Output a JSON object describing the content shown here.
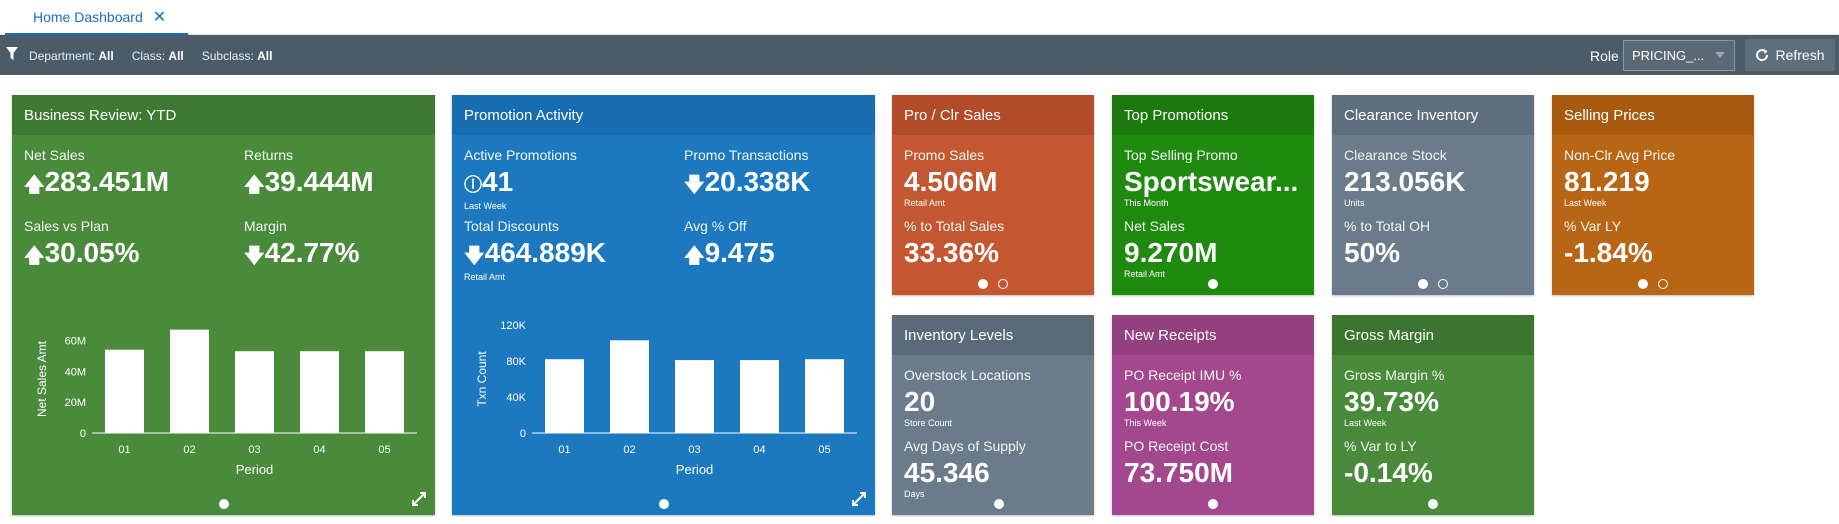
{
  "tabs": [
    {
      "label": "Home Dashboard"
    }
  ],
  "filters": {
    "department_label": "Department:",
    "department_value": "All",
    "class_label": "Class:",
    "class_value": "All",
    "subclass_label": "Subclass:",
    "subclass_value": "All"
  },
  "role": {
    "label": "Role",
    "value": "PRICING_..."
  },
  "refresh_label": "Refresh",
  "colors": {
    "green": "#4a8a3b",
    "blue": "#1c79c0",
    "orange": "#c25732",
    "brightgreen": "#1f8a0f",
    "slate": "#6b7b8a",
    "amber": "#b86515",
    "purple": "#a3488f",
    "darkgreen": "#3f7d37"
  },
  "tiles": {
    "business": {
      "title": "Business Review: YTD",
      "m1": {
        "label": "Net Sales",
        "value": "283.451M"
      },
      "m2": {
        "label": "Returns",
        "value": "39.444M"
      },
      "m3": {
        "label": "Sales vs Plan",
        "value": "30.05%"
      },
      "m4": {
        "label": "Margin",
        "value": "42.77%"
      }
    },
    "promotion": {
      "title": "Promotion Activity",
      "m1": {
        "label": "Active Promotions",
        "value": "41",
        "sub": "Last Week"
      },
      "m2": {
        "label": "Promo Transactions",
        "value": "20.338K"
      },
      "m3": {
        "label": "Total Discounts",
        "value": "464.889K",
        "sub": "Retail Amt"
      },
      "m4": {
        "label": "Avg % Off",
        "value": "9.475"
      }
    },
    "proclr": {
      "title": "Pro / Clr Sales",
      "m1": {
        "label": "Promo Sales",
        "value": "4.506M",
        "sub": "Retail Amt"
      },
      "m2": {
        "label": "% to Total Sales",
        "value": "33.36%"
      }
    },
    "toppromo": {
      "title": "Top Promotions",
      "m1": {
        "label": "Top Selling Promo",
        "value": "Sportswear...",
        "sub": "This Month"
      },
      "m2": {
        "label": "Net Sales",
        "value": "9.270M",
        "sub": "Retail Amt"
      }
    },
    "clearance": {
      "title": "Clearance Inventory",
      "m1": {
        "label": "Clearance Stock",
        "value": "213.056K",
        "sub": "Units"
      },
      "m2": {
        "label": "% to Total OH",
        "value": "50%"
      }
    },
    "selling": {
      "title": "Selling Prices",
      "m1": {
        "label": "Non-Clr Avg Price",
        "value": "81.219",
        "sub": "Last Week"
      },
      "m2": {
        "label": "% Var LY",
        "value": "-1.84%"
      }
    },
    "inventory": {
      "title": "Inventory Levels",
      "m1": {
        "label": "Overstock Locations",
        "value": "20",
        "sub": "Store Count"
      },
      "m2": {
        "label": "Avg Days of Supply",
        "value": "45.346",
        "sub": "Days"
      }
    },
    "receipts": {
      "title": "New Receipts",
      "m1": {
        "label": "PO Receipt IMU %",
        "value": "100.19%",
        "sub": "This Week"
      },
      "m2": {
        "label": "PO Receipt Cost",
        "value": "73.750M"
      }
    },
    "gross": {
      "title": "Gross Margin",
      "m1": {
        "label": "Gross Margin %",
        "value": "39.73%",
        "sub": "Last Week"
      },
      "m2": {
        "label": "% Var to LY",
        "value": "-0.14%"
      }
    }
  },
  "chart_data": [
    {
      "type": "bar",
      "categories": [
        "01",
        "02",
        "03",
        "04",
        "05"
      ],
      "values": [
        54,
        67,
        53,
        53,
        53
      ],
      "ylim": [
        0,
        70
      ],
      "yticks": [
        0,
        20,
        40,
        60
      ],
      "ytick_labels": [
        "0",
        "20M",
        "40M",
        "60M"
      ],
      "xlabel": "Period",
      "ylabel": "Net Sales Amt"
    },
    {
      "type": "bar",
      "categories": [
        "01",
        "02",
        "03",
        "04",
        "05"
      ],
      "values": [
        82,
        103,
        81,
        81,
        82
      ],
      "ylim": [
        0,
        120
      ],
      "yticks": [
        0,
        40,
        80,
        120
      ],
      "ytick_labels": [
        "0",
        "40K",
        "80K",
        "120K"
      ],
      "xlabel": "Period",
      "ylabel": "Txn Count"
    }
  ]
}
